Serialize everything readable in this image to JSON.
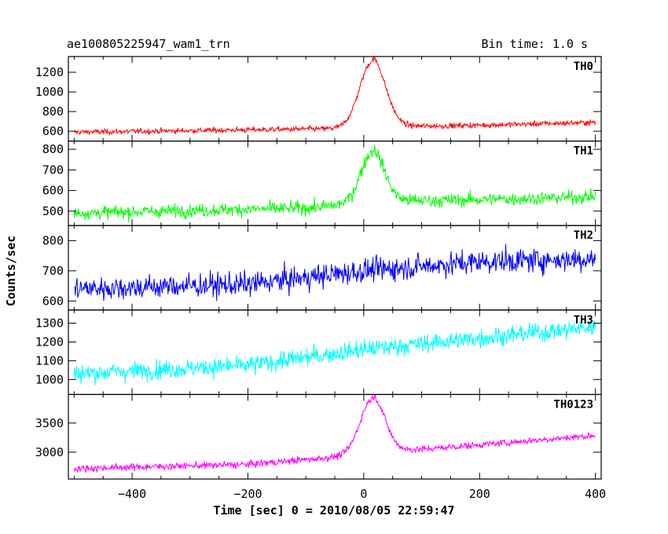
{
  "chart_data": {
    "type": "line",
    "title": "ae100805225947_wam1_trn",
    "bin_time_label": "Bin time: 1.0 s",
    "xlabel": "Time [sec] 0 = 2010/08/05 22:59:47",
    "ylabel": "Counts/sec",
    "xlim": [
      -510,
      410
    ],
    "x_ticks": [
      -400,
      -200,
      0,
      200,
      400
    ],
    "x_tick_labels": [
      "−400",
      "−200",
      "0",
      "200",
      "400"
    ],
    "grid": false,
    "panels": [
      {
        "name": "TH0",
        "color": "#ff0000",
        "ylim": [
          500,
          1360
        ],
        "y_ticks": [
          600,
          800,
          1000,
          1200
        ],
        "y_tick_labels": [
          "600",
          "800",
          "1000",
          "1200"
        ],
        "baseline": [
          [
            -500,
            590
          ],
          [
            0,
            630
          ],
          [
            400,
            690
          ]
        ],
        "peak": {
          "x": 15,
          "height": 680,
          "sigma": 22
        },
        "post_offset": 30,
        "noise": 28
      },
      {
        "name": "TH1",
        "color": "#00ff00",
        "ylim": [
          430,
          840
        ],
        "y_ticks": [
          500,
          600,
          700,
          800
        ],
        "y_tick_labels": [
          "500",
          "600",
          "700",
          "800"
        ],
        "baseline": [
          [
            -500,
            490
          ],
          [
            -100,
            515
          ],
          [
            0,
            540
          ],
          [
            400,
            570
          ]
        ],
        "peak": {
          "x": 15,
          "height": 245,
          "sigma": 20
        },
        "post_offset": 15,
        "noise": 32
      },
      {
        "name": "TH2",
        "color": "#0000ff",
        "ylim": [
          570,
          850
        ],
        "y_ticks": [
          600,
          700,
          800
        ],
        "y_tick_labels": [
          "600",
          "700",
          "800"
        ],
        "baseline": [
          [
            -500,
            640
          ],
          [
            -200,
            655
          ],
          [
            0,
            700
          ],
          [
            200,
            730
          ],
          [
            400,
            740
          ]
        ],
        "peak": {
          "x": 0,
          "height": 0,
          "sigma": 1
        },
        "post_offset": 0,
        "noise": 40
      },
      {
        "name": "TH3",
        "color": "#00ffff",
        "ylim": [
          920,
          1370
        ],
        "y_ticks": [
          1000,
          1100,
          1200,
          1300
        ],
        "y_tick_labels": [
          "1000",
          "1100",
          "1200",
          "1300"
        ],
        "baseline": [
          [
            -500,
            1030
          ],
          [
            -200,
            1075
          ],
          [
            0,
            1160
          ],
          [
            200,
            1220
          ],
          [
            400,
            1280
          ]
        ],
        "peak": {
          "x": 0,
          "height": 0,
          "sigma": 1
        },
        "post_offset": 0,
        "noise": 50
      },
      {
        "name": "TH0123",
        "color": "#ff00ff",
        "ylim": [
          2540,
          3990
        ],
        "y_ticks": [
          3000,
          3500
        ],
        "y_tick_labels": [
          "3000",
          "3500"
        ],
        "baseline": [
          [
            -500,
            2720
          ],
          [
            -200,
            2790
          ],
          [
            0,
            2960
          ],
          [
            400,
            3290
          ]
        ],
        "peak": {
          "x": 15,
          "height": 950,
          "sigma": 21
        },
        "post_offset": 40,
        "noise": 60
      }
    ]
  }
}
